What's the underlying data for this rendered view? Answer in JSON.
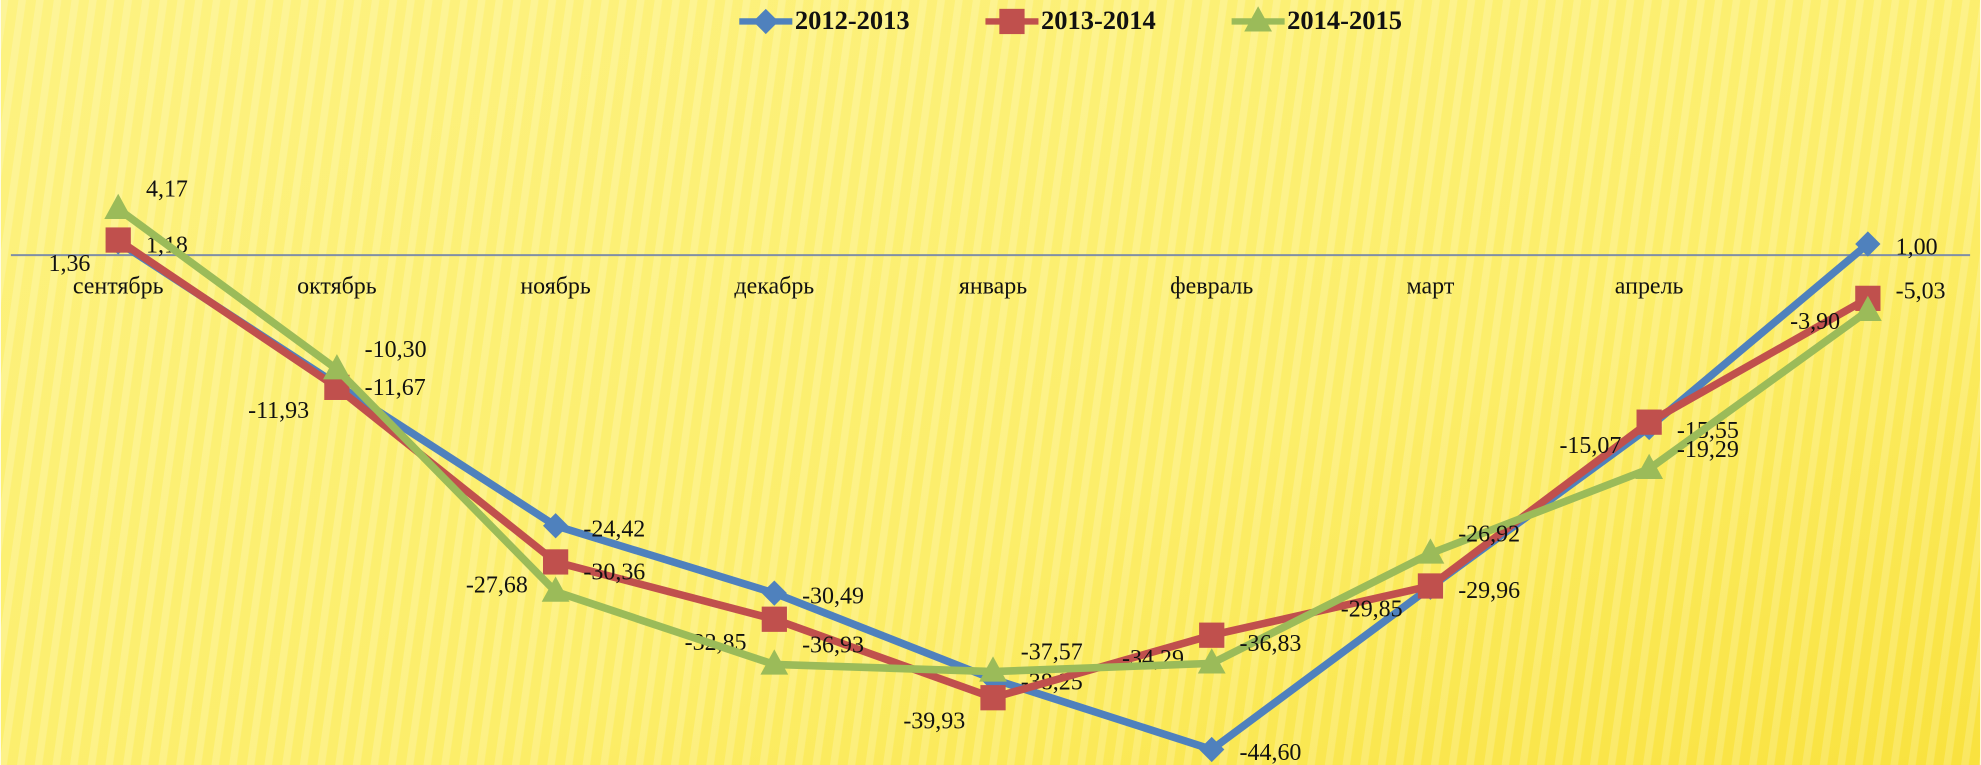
{
  "chart_data": {
    "type": "line",
    "categories": [
      "сентябрь",
      "октябрь",
      "ноябрь",
      "декабрь",
      "январь",
      "февраль",
      "март",
      "апрель",
      null
    ],
    "series": [
      {
        "name": "2012-2013",
        "color": "#4f81bd",
        "marker": "diamond",
        "values": [
          1.18,
          -11.67,
          -24.42,
          -30.49,
          -38.25,
          -44.6,
          -29.96,
          -15.55,
          1.0
        ],
        "value_labels": [
          "1,18",
          "-11,67",
          "-24,42",
          "-30,49",
          "-38,25",
          "-44,60",
          "-29,96",
          "-15,55",
          "1,00"
        ]
      },
      {
        "name": "2013-2014",
        "color": "#c0504d",
        "marker": "square",
        "values": [
          1.36,
          -11.93,
          -27.68,
          -32.85,
          -39.93,
          -34.29,
          -29.85,
          -15.07,
          -3.9
        ],
        "value_labels": [
          "1,36",
          "-11,93",
          "-27,68",
          "-32,85",
          "-39,93",
          "-34,29",
          "-29,85",
          "-15,07",
          "-3,90"
        ]
      },
      {
        "name": "2014-2015",
        "color": "#9bbb59",
        "marker": "triangle",
        "values": [
          4.17,
          -10.3,
          -30.36,
          -36.93,
          -37.57,
          -36.83,
          -26.92,
          -19.29,
          -5.03
        ],
        "value_labels": [
          "4,17",
          "-10,30",
          "-30,36",
          "-36,93",
          "-37,57",
          "-36,83",
          "-26,92",
          "-19,29",
          "-5,03"
        ]
      }
    ],
    "ylim": [
      -46,
      19.6
    ],
    "legend": "top"
  }
}
